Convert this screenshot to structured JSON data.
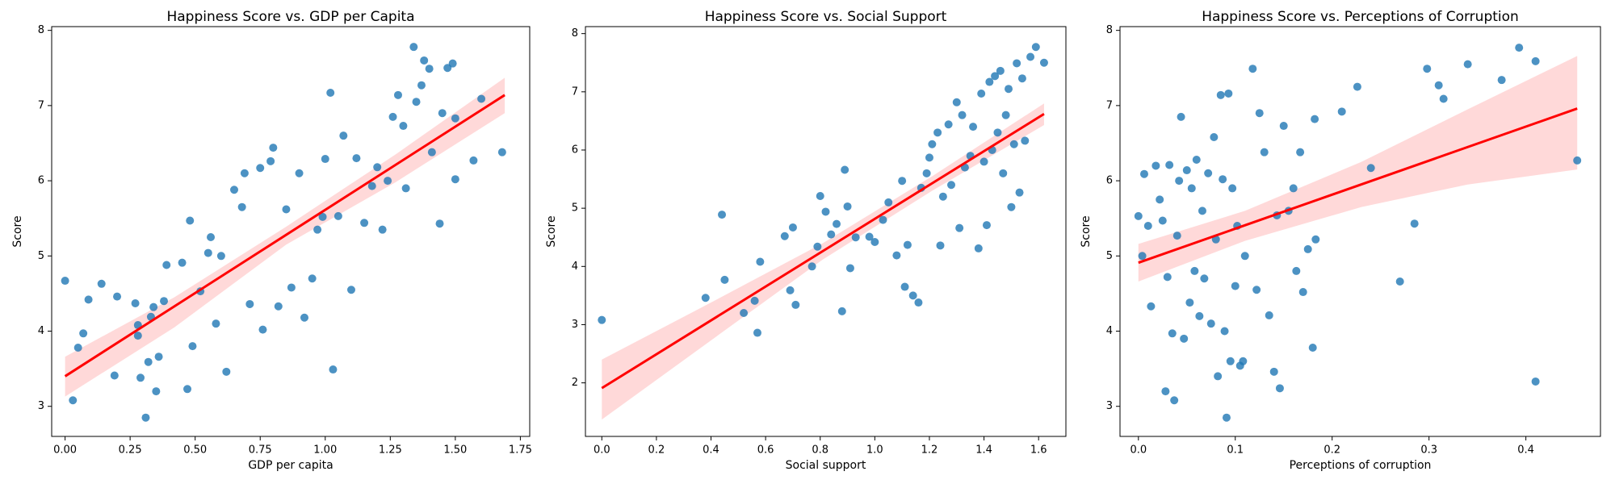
{
  "chart_data": [
    {
      "type": "scatter",
      "title": "Happiness Score vs. GDP per Capita",
      "x_label": "GDP per capita",
      "y_label": "Score",
      "color": "#1f77b4",
      "x": [
        0.0,
        0.03,
        0.05,
        0.07,
        0.09,
        0.14,
        0.19,
        0.2,
        0.27,
        0.28,
        0.28,
        0.29,
        0.31,
        0.32,
        0.33,
        0.34,
        0.35,
        0.36,
        0.38,
        0.39,
        0.45,
        0.47,
        0.48,
        0.49,
        0.52,
        0.55,
        0.56,
        0.58,
        0.6,
        0.62,
        0.65,
        0.68,
        0.69,
        0.71,
        0.75,
        0.76,
        0.79,
        0.8,
        0.82,
        0.85,
        0.87,
        0.9,
        0.92,
        0.95,
        0.97,
        0.99,
        1.0,
        1.02,
        1.03,
        1.05,
        1.07,
        1.1,
        1.12,
        1.15,
        1.18,
        1.2,
        1.22,
        1.24,
        1.26,
        1.28,
        1.3,
        1.31,
        1.34,
        1.35,
        1.37,
        1.38,
        1.4,
        1.41,
        1.44,
        1.45,
        1.47,
        1.49,
        1.5,
        1.5,
        1.57,
        1.6,
        1.68
      ],
      "y": [
        4.67,
        3.08,
        3.78,
        3.97,
        4.42,
        4.63,
        3.41,
        4.46,
        4.37,
        4.08,
        3.94,
        3.38,
        2.85,
        3.59,
        4.19,
        4.32,
        3.2,
        3.66,
        4.4,
        4.88,
        4.91,
        3.23,
        5.47,
        3.8,
        4.53,
        5.04,
        5.25,
        4.1,
        5.0,
        3.46,
        5.88,
        5.65,
        6.1,
        4.36,
        6.17,
        4.02,
        6.26,
        6.44,
        4.33,
        5.62,
        4.58,
        6.1,
        4.18,
        4.7,
        5.35,
        5.52,
        6.29,
        7.17,
        3.49,
        5.53,
        6.6,
        4.55,
        6.3,
        5.44,
        5.93,
        6.18,
        5.35,
        6.0,
        6.85,
        7.14,
        6.73,
        5.9,
        7.78,
        7.05,
        7.27,
        7.6,
        7.49,
        6.38,
        5.43,
        6.9,
        7.5,
        7.56,
        6.83,
        6.02,
        6.27,
        7.09,
        6.38
      ],
      "fit": {
        "color": "#ff0000",
        "x": [
          0,
          1.69
        ],
        "y": [
          3.4,
          7.14
        ]
      },
      "band": {
        "color": "#ff0000",
        "x": [
          0,
          0.42,
          0.85,
          1.27,
          1.69
        ],
        "upper": [
          3.66,
          4.45,
          5.39,
          6.35,
          7.37
        ],
        "lower": [
          3.13,
          4.05,
          5.15,
          5.98,
          6.9
        ]
      },
      "xlim": [
        -0.0515,
        1.786
      ],
      "ylim": [
        2.6,
        8.05
      ],
      "xticks": [
        {
          "value": 0,
          "label": "0.00"
        },
        0.25,
        {
          "value": 0.5,
          "label": "0.50"
        },
        0.75,
        {
          "value": 1,
          "label": "1.00"
        },
        1.25,
        {
          "value": 1.5,
          "label": "1.50"
        },
        1.75
      ],
      "yticks": [
        3,
        4,
        5,
        6,
        7,
        8
      ]
    },
    {
      "type": "scatter",
      "title": "Happiness Score vs. Social Support",
      "x_label": "Social support",
      "y_label": "Score",
      "color": "#1f77b4",
      "x": [
        0.0,
        0.38,
        0.44,
        0.45,
        0.52,
        0.56,
        0.57,
        0.58,
        0.67,
        0.69,
        0.7,
        0.71,
        0.77,
        0.79,
        0.8,
        0.82,
        0.84,
        0.86,
        0.88,
        0.89,
        0.9,
        0.91,
        0.93,
        0.98,
        1.0,
        1.03,
        1.05,
        1.08,
        1.1,
        1.11,
        1.12,
        1.14,
        1.16,
        1.17,
        1.19,
        1.2,
        1.21,
        1.23,
        1.24,
        1.25,
        1.27,
        1.28,
        1.3,
        1.31,
        1.32,
        1.33,
        1.35,
        1.36,
        1.38,
        1.39,
        1.4,
        1.41,
        1.42,
        1.43,
        1.44,
        1.45,
        1.46,
        1.47,
        1.48,
        1.49,
        1.5,
        1.51,
        1.52,
        1.53,
        1.54,
        1.55,
        1.57,
        1.59,
        1.62
      ],
      "y": [
        3.08,
        3.46,
        4.89,
        3.77,
        3.2,
        3.41,
        2.86,
        4.08,
        4.52,
        3.59,
        4.67,
        3.34,
        4.0,
        4.34,
        5.21,
        4.94,
        4.55,
        4.73,
        3.23,
        5.66,
        5.03,
        3.97,
        4.5,
        4.51,
        4.42,
        4.8,
        5.1,
        4.19,
        5.47,
        3.65,
        4.37,
        3.5,
        3.38,
        5.35,
        5.6,
        5.87,
        6.1,
        6.3,
        4.36,
        5.2,
        6.44,
        5.4,
        6.82,
        4.66,
        6.6,
        5.7,
        5.9,
        6.4,
        4.31,
        6.97,
        5.8,
        4.71,
        7.17,
        6.0,
        7.27,
        6.3,
        7.36,
        5.6,
        6.6,
        7.05,
        5.02,
        6.1,
        7.49,
        5.27,
        7.23,
        6.16,
        7.6,
        7.77,
        7.5
      ],
      "fit": {
        "color": "#ff0000",
        "x": [
          0,
          1.62
        ],
        "y": [
          1.91,
          6.62
        ]
      },
      "band": {
        "color": "#ff0000",
        "x": [
          0,
          0.4,
          0.81,
          1.21,
          1.62
        ],
        "upper": [
          2.4,
          3.38,
          4.4,
          5.55,
          6.8
        ],
        "lower": [
          1.37,
          2.73,
          4.12,
          5.3,
          6.43
        ]
      },
      "xlim": [
        -0.06,
        1.7
      ],
      "ylim": [
        1.08,
        8.12
      ],
      "xticks": [
        {
          "value": 0,
          "label": "0.0"
        },
        0.2,
        0.4,
        0.6,
        0.8,
        {
          "value": 1,
          "label": "1.0"
        },
        1.2,
        1.4,
        1.6
      ],
      "yticks": [
        2,
        3,
        4,
        5,
        6,
        7,
        8
      ]
    },
    {
      "type": "scatter",
      "title": "Happiness Score vs. Perceptions of Corruption",
      "x_label": "Perceptions of corruption",
      "y_label": "Score",
      "color": "#1f77b4",
      "x": [
        0.0,
        0.004,
        0.006,
        0.01,
        0.013,
        0.018,
        0.022,
        0.025,
        0.028,
        0.03,
        0.032,
        0.035,
        0.037,
        0.04,
        0.042,
        0.044,
        0.047,
        0.05,
        0.053,
        0.055,
        0.058,
        0.06,
        0.063,
        0.066,
        0.068,
        0.072,
        0.075,
        0.078,
        0.08,
        0.082,
        0.085,
        0.087,
        0.089,
        0.091,
        0.093,
        0.095,
        0.097,
        0.1,
        0.102,
        0.105,
        0.108,
        0.11,
        0.118,
        0.122,
        0.125,
        0.13,
        0.135,
        0.14,
        0.143,
        0.146,
        0.15,
        0.155,
        0.16,
        0.163,
        0.167,
        0.17,
        0.175,
        0.18,
        0.182,
        0.183,
        0.21,
        0.226,
        0.24,
        0.27,
        0.285,
        0.298,
        0.31,
        0.315,
        0.34,
        0.375,
        0.393,
        0.41,
        0.41,
        0.453
      ],
      "y": [
        5.53,
        5.0,
        6.09,
        5.4,
        4.33,
        6.2,
        5.75,
        5.47,
        3.2,
        4.72,
        6.21,
        3.97,
        3.08,
        5.27,
        6.0,
        6.85,
        3.9,
        6.14,
        4.38,
        5.9,
        4.8,
        6.28,
        4.2,
        5.6,
        4.7,
        6.1,
        4.1,
        6.58,
        5.22,
        3.4,
        7.14,
        6.02,
        4.0,
        2.85,
        7.16,
        3.6,
        5.9,
        4.6,
        5.4,
        3.54,
        3.6,
        5.0,
        7.49,
        4.55,
        6.9,
        6.38,
        4.21,
        3.46,
        5.54,
        3.24,
        6.73,
        5.6,
        5.9,
        4.8,
        6.38,
        4.52,
        5.09,
        3.78,
        6.82,
        5.22,
        6.92,
        7.25,
        6.17,
        4.66,
        5.43,
        7.49,
        7.27,
        7.09,
        7.55,
        7.34,
        7.77,
        7.59,
        3.33,
        6.27
      ],
      "fit": {
        "color": "#ff0000",
        "x": [
          0,
          0.453
        ],
        "y": [
          4.91,
          6.96
        ]
      },
      "band": {
        "color": "#ff0000",
        "x": [
          0,
          0.11,
          0.23,
          0.34,
          0.453
        ],
        "upper": [
          5.16,
          5.6,
          6.25,
          6.95,
          7.66
        ],
        "lower": [
          4.66,
          5.2,
          5.65,
          5.95,
          6.15
        ]
      },
      "xlim": [
        -0.019,
        0.477
      ],
      "ylim": [
        2.6,
        8.05
      ],
      "xticks": [
        {
          "value": 0,
          "label": "0.0"
        },
        0.1,
        0.2,
        0.3,
        0.4
      ],
      "yticks": [
        3,
        4,
        5,
        6,
        7,
        8
      ]
    }
  ]
}
